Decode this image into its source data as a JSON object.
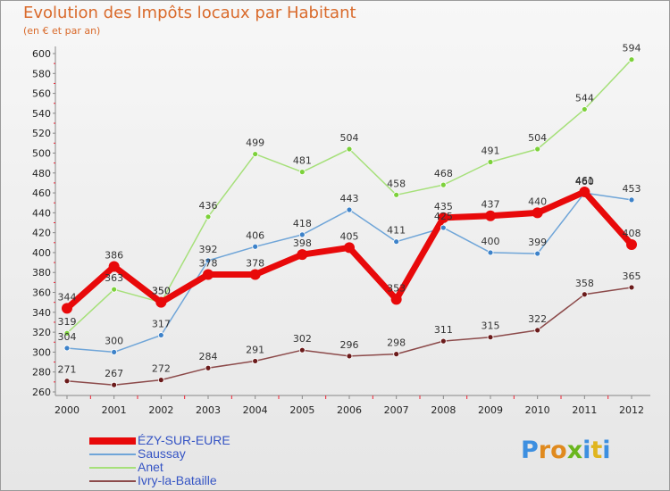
{
  "title": "Evolution des Impôts locaux par Habitant",
  "subtitle": "(en € et par an)",
  "logo": {
    "letters": [
      "P",
      "r",
      "o",
      "x",
      "i",
      "t",
      "i"
    ],
    "colors": [
      "#3d8fe0",
      "#e08a1e",
      "#e08a1e",
      "#6ab61e",
      "#3d8fe0",
      "#e0b51e",
      "#3d8fe0"
    ]
  },
  "chart_data": {
    "type": "line",
    "x": [
      "2000",
      "2001",
      "2002",
      "2003",
      "2004",
      "2005",
      "2006",
      "2007",
      "2008",
      "2009",
      "2010",
      "2011",
      "2012"
    ],
    "ylim": [
      260,
      600
    ],
    "yticks": [
      260,
      280,
      300,
      320,
      340,
      360,
      380,
      400,
      420,
      440,
      460,
      480,
      500,
      520,
      540,
      560,
      580,
      600
    ],
    "grid": false,
    "legend_position": "bottom-left",
    "series": [
      {
        "name": "ÉZY-SUR-EURE",
        "color": "#e8090a",
        "width": 7,
        "marker_fill": "#e8090a",
        "marker_r": 6,
        "values": [
          344,
          386,
          350,
          378,
          378,
          398,
          405,
          353,
          435,
          437,
          440,
          461,
          408
        ]
      },
      {
        "name": "Saussay",
        "color": "#6fa5d8",
        "width": 1.5,
        "marker_fill": "#3d82c9",
        "marker_r": 3,
        "values": [
          304,
          300,
          317,
          392,
          406,
          418,
          443,
          411,
          425,
          400,
          399,
          460,
          453
        ]
      },
      {
        "name": "Anet",
        "color": "#a6e07a",
        "width": 1.5,
        "marker_fill": "#7cd13a",
        "marker_r": 3,
        "values": [
          319,
          363,
          350,
          436,
          499,
          481,
          504,
          458,
          468,
          491,
          504,
          544,
          594
        ]
      },
      {
        "name": "Ivry-la-Bataille",
        "color": "#8c4a4a",
        "width": 1.5,
        "marker_fill": "#6b1b1b",
        "marker_r": 3,
        "values": [
          271,
          267,
          272,
          284,
          291,
          302,
          296,
          298,
          311,
          315,
          322,
          358,
          365
        ]
      }
    ]
  }
}
